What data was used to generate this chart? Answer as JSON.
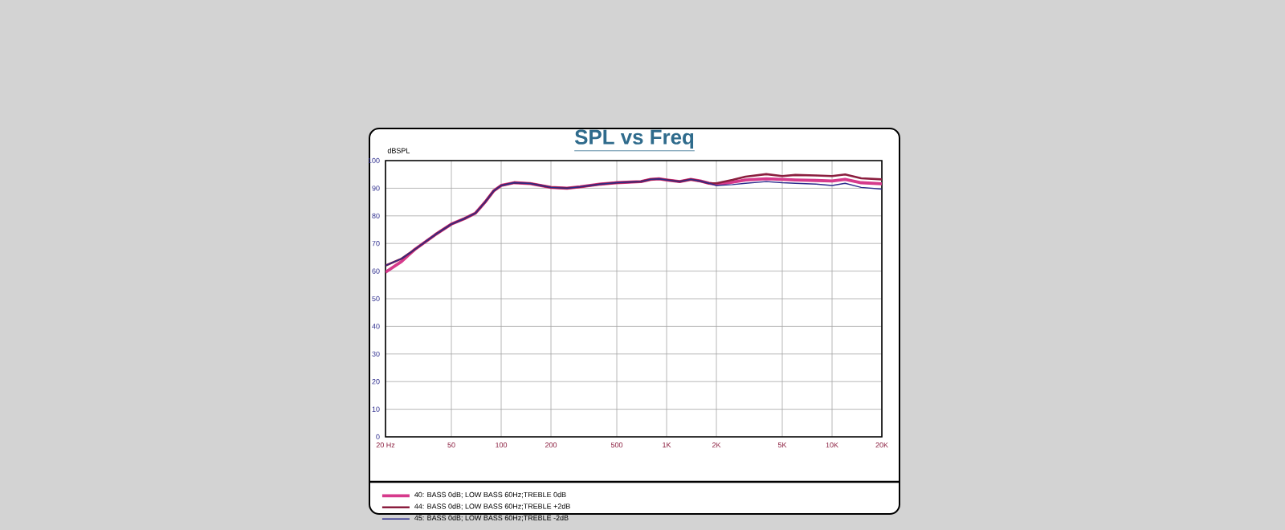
{
  "chart_data": {
    "type": "line",
    "title": "SPL vs Freq",
    "ylabel": "dBSPL",
    "log": "x",
    "grid": true,
    "legend": "bottom",
    "marker": "none",
    "line_style": "solid",
    "xlim": [
      20,
      20000
    ],
    "ylim": [
      0,
      100
    ],
    "xticks": [
      {
        "value": 20,
        "label": "20 Hz"
      },
      50,
      100,
      200,
      500,
      {
        "value": 1000,
        "label": "1K"
      },
      {
        "value": 2000,
        "label": "2K"
      },
      {
        "value": 5000,
        "label": "5K"
      },
      {
        "value": 10000,
        "label": "10K"
      },
      {
        "value": 20000,
        "label": "20K"
      }
    ],
    "yticks": [
      0,
      10,
      20,
      30,
      40,
      50,
      60,
      70,
      80,
      90,
      100
    ],
    "x": [
      20,
      25,
      30,
      40,
      50,
      60,
      70,
      80,
      90,
      100,
      120,
      150,
      200,
      250,
      300,
      400,
      500,
      700,
      800,
      900,
      1000,
      1200,
      1400,
      1600,
      1800,
      2000,
      2500,
      3000,
      4000,
      5000,
      6000,
      8000,
      10000,
      12000,
      15000,
      20000
    ],
    "series": [
      {
        "name": "40: BASS 0dB; LOW BASS 60Hz;TREBLE 0dB",
        "color": "#d63a8c",
        "values": [
          59.6,
          63.5,
          67.8,
          73.2,
          77,
          79,
          81,
          85,
          89,
          91,
          92,
          91.7,
          90.3,
          90,
          90.5,
          91.5,
          92,
          92.4,
          93.2,
          93.4,
          93,
          92.4,
          93.2,
          92.6,
          91.8,
          91.4,
          92.2,
          93,
          93.4,
          93.2,
          93,
          92.8,
          92.6,
          93.2,
          92,
          91.6
        ]
      },
      {
        "name": "44: BASS 0dB; LOW BASS 60Hz;TREBLE +2dB",
        "color": "#8b1e3f",
        "values": [
          62,
          64.5,
          67.8,
          73.2,
          77,
          79,
          81,
          85,
          89,
          91,
          92,
          91.7,
          90.3,
          90,
          90.5,
          91.5,
          92,
          92.4,
          93.2,
          93.4,
          93,
          92.4,
          93.2,
          92.6,
          91.8,
          91.8,
          93,
          94.2,
          95.1,
          94.4,
          94.8,
          94.6,
          94.4,
          95,
          93.6,
          93.2
        ]
      },
      {
        "name": "45: BASS 0dB; LOW BASS 60Hz;TREBLE -2dB",
        "color": "#2b2b8c",
        "values": [
          62,
          64.5,
          67.8,
          73.2,
          77,
          79,
          81,
          85,
          89,
          91,
          92,
          91.7,
          90.3,
          90,
          90.5,
          91.5,
          92,
          92.4,
          93.2,
          93.4,
          93,
          92.4,
          93.2,
          92.6,
          91.8,
          91,
          91.3,
          91.8,
          92.4,
          92,
          91.8,
          91.5,
          91,
          91.8,
          90.3,
          89.7
        ]
      }
    ]
  }
}
